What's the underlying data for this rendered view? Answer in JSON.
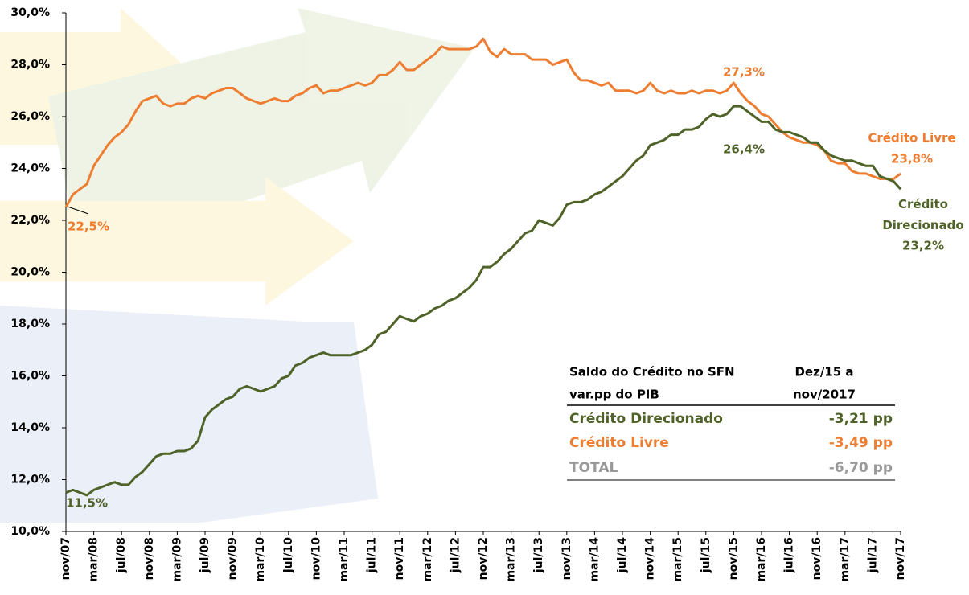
{
  "chart_data": {
    "type": "line",
    "categories": [
      "nov/07",
      null,
      null,
      null,
      "mar/08",
      null,
      null,
      null,
      "jul/08",
      null,
      null,
      null,
      "nov/08",
      null,
      null,
      null,
      "mar/09",
      null,
      null,
      null,
      "jul/09",
      null,
      null,
      null,
      "nov/09",
      null,
      null,
      null,
      "mar/10",
      null,
      null,
      null,
      "jul/10",
      null,
      null,
      null,
      "nov/10",
      null,
      null,
      null,
      "mar/11",
      null,
      null,
      null,
      "jul/11",
      null,
      null,
      null,
      "nov/11",
      null,
      null,
      null,
      "mar/12",
      null,
      null,
      null,
      "jul/12",
      null,
      null,
      null,
      "nov/12",
      null,
      null,
      null,
      "mar/13",
      null,
      null,
      null,
      "jul/13",
      null,
      null,
      null,
      "nov/13",
      null,
      null,
      null,
      "mar/14",
      null,
      null,
      null,
      "jul/14",
      null,
      null,
      null,
      "nov/14",
      null,
      null,
      null,
      "mar/15",
      null,
      null,
      null,
      "jul/15",
      null,
      null,
      null,
      "nov/15",
      null,
      null,
      null,
      "mar/16",
      null,
      null,
      null,
      "jul/16",
      null,
      null,
      null,
      "nov/16",
      null,
      null,
      null,
      "mar/17",
      null,
      null,
      null,
      "jul/17",
      null,
      null,
      null,
      "nov/17"
    ],
    "series": [
      {
        "name": "Crédito Livre",
        "color": "#ED7D31",
        "values": [
          22.5,
          23.0,
          23.2,
          23.4,
          24.1,
          24.5,
          24.9,
          25.2,
          25.4,
          25.7,
          26.2,
          26.6,
          26.7,
          26.8,
          26.5,
          26.4,
          26.5,
          26.5,
          26.7,
          26.8,
          26.7,
          26.9,
          27.0,
          27.1,
          27.1,
          26.9,
          26.7,
          26.6,
          26.5,
          26.6,
          26.7,
          26.6,
          26.6,
          26.8,
          26.9,
          27.1,
          27.2,
          26.9,
          27.0,
          27.0,
          27.1,
          27.2,
          27.3,
          27.2,
          27.3,
          27.6,
          27.6,
          27.8,
          28.1,
          27.8,
          27.8,
          28.0,
          28.2,
          28.4,
          28.7,
          28.6,
          28.6,
          28.6,
          28.6,
          28.7,
          29.0,
          28.5,
          28.3,
          28.6,
          28.4,
          28.4,
          28.4,
          28.2,
          28.2,
          28.2,
          28.0,
          28.1,
          28.2,
          27.7,
          27.4,
          27.4,
          27.3,
          27.2,
          27.3,
          27.0,
          27.0,
          27.0,
          26.9,
          27.0,
          27.3,
          27.0,
          26.9,
          27.0,
          26.9,
          26.9,
          27.0,
          26.9,
          27.0,
          27.0,
          26.9,
          27.0,
          27.3,
          26.9,
          26.6,
          26.4,
          26.1,
          26.0,
          25.7,
          25.4,
          25.2,
          25.1,
          25.0,
          25.0,
          24.9,
          24.7,
          24.3,
          24.2,
          24.2,
          23.9,
          23.8,
          23.8,
          23.7,
          23.6,
          23.6,
          23.6,
          23.8
        ]
      },
      {
        "name": "Crédito Direcionado",
        "color": "#4F6228",
        "values": [
          11.5,
          11.6,
          11.5,
          11.4,
          11.6,
          11.7,
          11.8,
          11.9,
          11.8,
          11.8,
          12.1,
          12.3,
          12.6,
          12.9,
          13.0,
          13.0,
          13.1,
          13.1,
          13.2,
          13.5,
          14.4,
          14.7,
          14.9,
          15.1,
          15.2,
          15.5,
          15.6,
          15.5,
          15.4,
          15.5,
          15.6,
          15.9,
          16.0,
          16.4,
          16.5,
          16.7,
          16.8,
          16.9,
          16.8,
          16.8,
          16.8,
          16.8,
          16.9,
          17.0,
          17.2,
          17.6,
          17.7,
          18.0,
          18.3,
          18.2,
          18.1,
          18.3,
          18.4,
          18.6,
          18.7,
          18.9,
          19.0,
          19.2,
          19.4,
          19.7,
          20.2,
          20.2,
          20.4,
          20.7,
          20.9,
          21.2,
          21.5,
          21.6,
          22.0,
          21.9,
          21.8,
          22.1,
          22.6,
          22.7,
          22.7,
          22.8,
          23.0,
          23.1,
          23.3,
          23.5,
          23.7,
          24.0,
          24.3,
          24.5,
          24.9,
          25.0,
          25.1,
          25.3,
          25.3,
          25.5,
          25.5,
          25.6,
          25.9,
          26.1,
          26.0,
          26.1,
          26.4,
          26.4,
          26.2,
          26.0,
          25.8,
          25.8,
          25.5,
          25.4,
          25.4,
          25.3,
          25.2,
          25.0,
          25.0,
          24.7,
          24.5,
          24.4,
          24.3,
          24.3,
          24.2,
          24.1,
          24.1,
          23.7,
          23.6,
          23.5,
          23.2
        ]
      }
    ],
    "ylim": [
      10,
      30
    ],
    "yticks": [
      {
        "value": 10,
        "label": "10,0%"
      },
      {
        "value": 12,
        "label": "12,0%"
      },
      {
        "value": 14,
        "label": "14,0%"
      },
      {
        "value": 16,
        "label": "16,0%"
      },
      {
        "value": 18,
        "label": "18,0%"
      },
      {
        "value": 20,
        "label": "20,0%"
      },
      {
        "value": 22,
        "label": "22,0%"
      },
      {
        "value": 24,
        "label": "24,0%"
      },
      {
        "value": 26,
        "label": "26,0%"
      },
      {
        "value": 28,
        "label": "28,0%"
      },
      {
        "value": 30,
        "label": "30,0%"
      }
    ],
    "annotations": [
      "22,5%",
      "11,5%",
      "27,3%",
      "26,4%",
      "23,8%",
      "23,2%"
    ]
  },
  "table": {
    "header": [
      [
        "Saldo do Crédito no SFN",
        "Dez/15 a"
      ],
      [
        "var.pp do PIB",
        "nov/2017"
      ]
    ],
    "rows": [
      [
        "Crédito Direcionado",
        "-3,21 pp"
      ],
      [
        "Crédito Livre",
        "-3,49 pp"
      ],
      [
        "TOTAL",
        "-6,70 pp"
      ]
    ]
  }
}
